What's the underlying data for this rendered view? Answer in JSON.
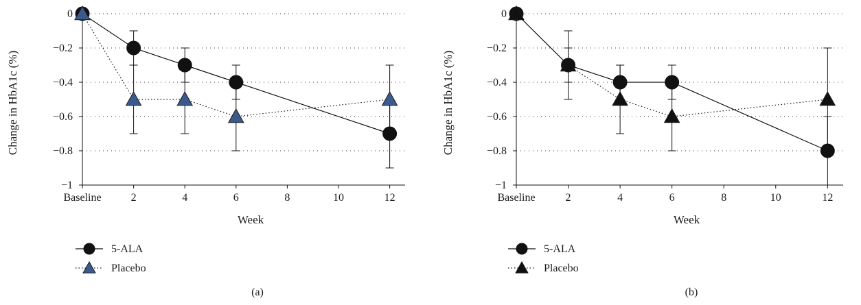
{
  "chart_data": [
    {
      "type": "line",
      "panel_label": "(a)",
      "xlabel": "Week",
      "ylabel": "Change in HbA1c (%)",
      "xlim": [
        0,
        12.6
      ],
      "ylim": [
        -1,
        0
      ],
      "y_ticks": [
        0,
        -0.2,
        -0.4,
        -0.6,
        -0.8,
        -1
      ],
      "y_tick_labels": [
        "0",
        "−0.2",
        "−0.4",
        "−0.6",
        "−0.8",
        "−1"
      ],
      "x_ticks": [
        0,
        2,
        4,
        6,
        8,
        10,
        12
      ],
      "x_tick_labels": [
        "Baseline",
        "2",
        "4",
        "6",
        "8",
        "10",
        "12"
      ],
      "grid": "horizontal dotted",
      "legend_placement": "below",
      "series": [
        {
          "name": "5-ALA",
          "marker": "circle",
          "line": "solid",
          "color": "#111111",
          "x": [
            0,
            2,
            4,
            6,
            12
          ],
          "y": [
            0,
            -0.2,
            -0.3,
            -0.4,
            -0.7
          ],
          "err_low": [
            0,
            -0.3,
            -0.4,
            -0.5,
            -0.9
          ],
          "err_high": [
            0,
            -0.1,
            -0.2,
            -0.3,
            -0.5
          ]
        },
        {
          "name": "Placebo",
          "marker": "triangle",
          "line": "dotted",
          "color": "#3a5a8c",
          "x": [
            0,
            2,
            4,
            6,
            12
          ],
          "y": [
            0,
            -0.5,
            -0.5,
            -0.6,
            -0.5
          ],
          "err_low": [
            0,
            -0.7,
            -0.7,
            -0.8,
            -0.7
          ],
          "err_high": [
            0,
            -0.3,
            -0.3,
            -0.4,
            -0.3
          ]
        }
      ]
    },
    {
      "type": "line",
      "panel_label": "(b)",
      "xlabel": "Week",
      "ylabel": "Change in HbA1c (%)",
      "xlim": [
        0,
        12.6
      ],
      "ylim": [
        -1,
        0
      ],
      "y_ticks": [
        0,
        -0.2,
        -0.4,
        -0.6,
        -0.8,
        -1
      ],
      "y_tick_labels": [
        "0",
        "−0.2",
        "−0.4",
        "−0.6",
        "−0.8",
        "−1"
      ],
      "x_ticks": [
        0,
        2,
        4,
        6,
        8,
        10,
        12
      ],
      "x_tick_labels": [
        "Baseline",
        "2",
        "4",
        "6",
        "8",
        "10",
        "12"
      ],
      "grid": "horizontal dotted",
      "legend_placement": "below",
      "series": [
        {
          "name": "5-ALA",
          "marker": "circle",
          "line": "solid",
          "color": "#111111",
          "x": [
            0,
            2,
            4,
            6,
            12
          ],
          "y": [
            0,
            -0.3,
            -0.4,
            -0.4,
            -0.8
          ],
          "err_low": [
            0,
            -0.4,
            -0.5,
            -0.5,
            -1.0
          ],
          "err_high": [
            0,
            -0.2,
            -0.3,
            -0.3,
            -0.6
          ]
        },
        {
          "name": "Placebo",
          "marker": "triangle",
          "line": "dotted",
          "color": "#111111",
          "x": [
            0,
            2,
            4,
            6,
            12
          ],
          "y": [
            0,
            -0.3,
            -0.5,
            -0.6,
            -0.5
          ],
          "err_low": [
            0,
            -0.5,
            -0.7,
            -0.8,
            -0.8
          ],
          "err_high": [
            0,
            -0.1,
            -0.3,
            -0.4,
            -0.2
          ]
        }
      ]
    }
  ]
}
